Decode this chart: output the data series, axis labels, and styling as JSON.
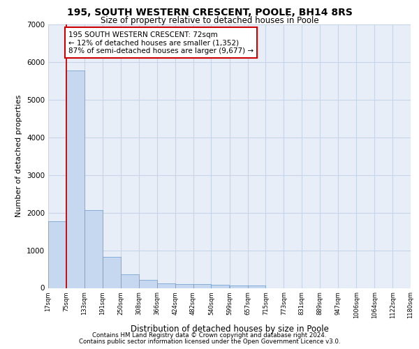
{
  "title1": "195, SOUTH WESTERN CRESCENT, POOLE, BH14 8RS",
  "title2": "Size of property relative to detached houses in Poole",
  "xlabel": "Distribution of detached houses by size in Poole",
  "ylabel": "Number of detached properties",
  "annotation_line1": "195 SOUTH WESTERN CRESCENT: 72sqm",
  "annotation_line2": "← 12% of detached houses are smaller (1,352)",
  "annotation_line3": "87% of semi-detached houses are larger (9,677) →",
  "bin_edges": [
    17,
    75,
    133,
    191,
    250,
    308,
    366,
    424,
    482,
    540,
    599,
    657,
    715,
    773,
    831,
    889,
    947,
    1006,
    1064,
    1122,
    1180
  ],
  "bin_labels": [
    "17sqm",
    "75sqm",
    "133sqm",
    "191sqm",
    "250sqm",
    "308sqm",
    "366sqm",
    "424sqm",
    "482sqm",
    "540sqm",
    "599sqm",
    "657sqm",
    "715sqm",
    "773sqm",
    "831sqm",
    "889sqm",
    "947sqm",
    "1006sqm",
    "1064sqm",
    "1122sqm",
    "1180sqm"
  ],
  "bar_heights": [
    1780,
    5780,
    2060,
    820,
    360,
    220,
    125,
    105,
    95,
    80,
    70,
    65,
    0,
    0,
    0,
    0,
    0,
    0,
    0,
    0
  ],
  "bar_color": "#c5d8f0",
  "bar_edge_color": "#6699cc",
  "grid_color": "#c8d4e8",
  "background_color": "#e8eef8",
  "vline_color": "#cc0000",
  "ylim": [
    0,
    7000
  ],
  "yticks": [
    0,
    1000,
    2000,
    3000,
    4000,
    5000,
    6000,
    7000
  ],
  "footer1": "Contains HM Land Registry data © Crown copyright and database right 2024.",
  "footer2": "Contains public sector information licensed under the Open Government Licence v3.0."
}
